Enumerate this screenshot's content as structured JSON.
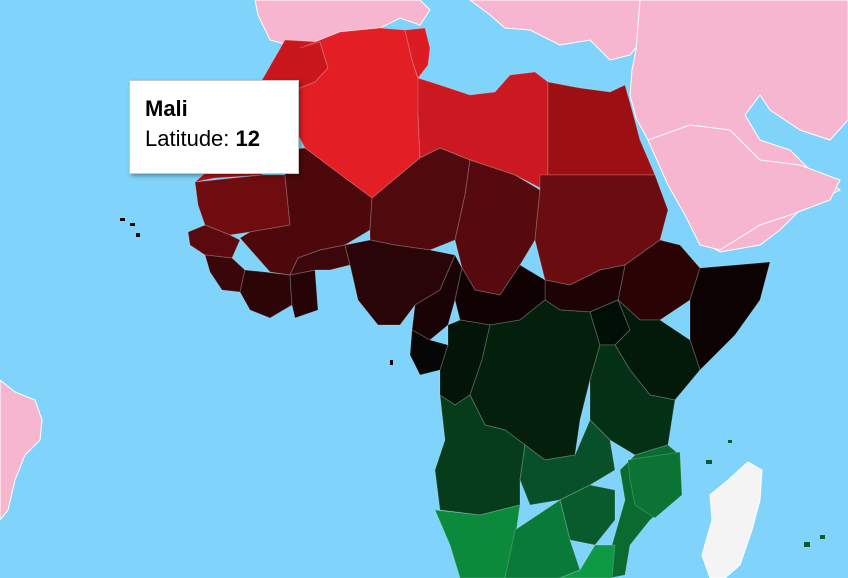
{
  "tooltip": {
    "country": "Mali",
    "metric_label": "Latitude:",
    "metric_value": "12"
  },
  "map": {
    "region": "Africa",
    "metric": "Latitude",
    "color_scale": {
      "north": "#e31e24",
      "zero": "#000000",
      "south": "#008f3f"
    },
    "ocean_color": "#80d4fb",
    "other_land_color": "#f7b6cf"
  }
}
